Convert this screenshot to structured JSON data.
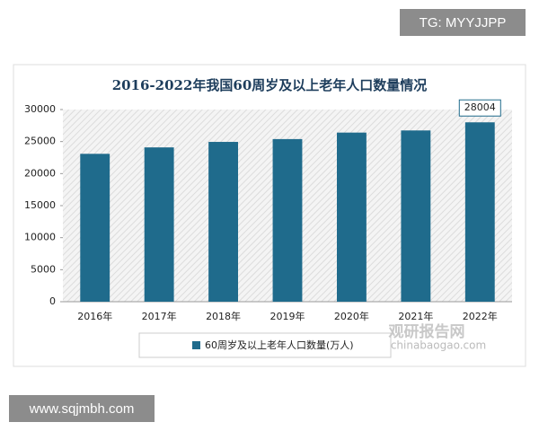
{
  "chart_data": {
    "type": "bar",
    "title": "2016-2022年我国60周岁及以上老年人口数量情况",
    "categories": [
      "2016年",
      "2017年",
      "2018年",
      "2019年",
      "2020年",
      "2021年",
      "2022年"
    ],
    "series": [
      {
        "name": "60周岁及以上老年人口数量(万人)",
        "color": "#1f6b8c",
        "values": [
          23086,
          24090,
          24949,
          25388,
          26402,
          26736,
          28004
        ],
        "value_labels": [
          null,
          null,
          null,
          null,
          null,
          null,
          "28004"
        ]
      }
    ],
    "ylim": [
      0,
      30000
    ],
    "yticks": [
      0,
      5000,
      10000,
      15000,
      20000,
      25000,
      30000
    ],
    "legend": "bottom"
  },
  "watermarks": {
    "top_right": "TG: MYYJJPP",
    "bottom_left": "www.sqjmbh.com",
    "logo": "观研报告网",
    "logo_url": "chinabaogao.com"
  }
}
